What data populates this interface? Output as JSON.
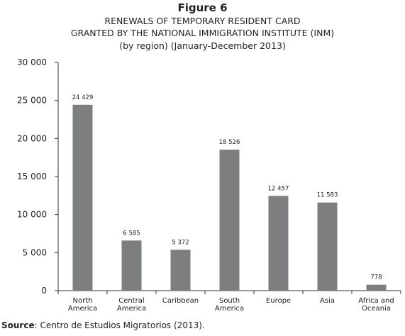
{
  "figure_label": "Figure 6",
  "title_lines": [
    "RENEWALS OF TEMPORARY RESIDENT CARD",
    "GRANTED BY THE NATIONAL IMMIGRATION INSTITUTE (INM)",
    "(by region) (January-December 2013)"
  ],
  "source": {
    "label": "Source",
    "text": ": Centro de Estudios Migratorios (2013)."
  },
  "colors": {
    "bar": "#7d7e80",
    "axis": "#333333",
    "text": "#222222"
  },
  "chart_data": {
    "type": "bar",
    "categories": [
      [
        "North",
        "America"
      ],
      [
        "Central",
        "America"
      ],
      [
        "Caribbean"
      ],
      [
        "South",
        "America"
      ],
      [
        "Europe"
      ],
      [
        "Asia"
      ],
      [
        "Africa and",
        "Oceania"
      ]
    ],
    "values": [
      24429,
      6585,
      5372,
      18526,
      12457,
      11583,
      778
    ],
    "value_labels": [
      "24 429",
      "6 585",
      "5 372",
      "18 526",
      "12 457",
      "11 583",
      "778"
    ],
    "yticks": [
      0,
      5000,
      10000,
      15000,
      20000,
      25000,
      30000
    ],
    "ytick_labels": [
      "0",
      "5 000",
      "10 000",
      "15 000",
      "20 000",
      "25 000",
      "30 000"
    ],
    "ylim": [
      0,
      30000
    ],
    "grid": false,
    "legend": "none"
  }
}
